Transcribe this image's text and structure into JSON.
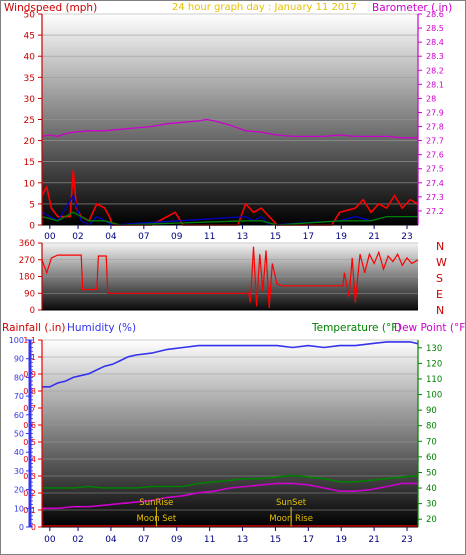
{
  "header": {
    "left_title": "Windspeed (mph)",
    "center_title": "24 hour graph day : January 11 2017",
    "right_title": "Barometer (.in)"
  },
  "middle": {
    "direction_labels": [
      "N",
      "W",
      "S",
      "E",
      "N"
    ]
  },
  "footer": {
    "rainfall_label": "Rainfall (.in)",
    "humidity_label": "Humidity (%)",
    "temperature_label": "Temperature (°F)",
    "dewpoint_label": "Dew Point (°F)"
  },
  "colors": {
    "wind": "#ff0000",
    "gust": "#0000cc",
    "wind_avg": "#008000",
    "barometer": "#cc00cc",
    "direction": "#ff0000",
    "humidity": "#3333ee",
    "temperature": "#008000",
    "dewpoint": "#cc00cc",
    "sun_moon": "#e6c000",
    "rain_axis": "#ee0000",
    "humidity_axis": "#3333ee",
    "temp_axis": "#008000"
  },
  "chart_data": [
    {
      "type": "line",
      "name": "wind-barometer",
      "x_ticks": [
        "00",
        "02",
        "04",
        "07",
        "09",
        "11",
        "13",
        "15",
        "17",
        "19",
        "21",
        "23"
      ],
      "y_left": {
        "label": "Windspeed (mph)",
        "range": [
          0,
          50
        ],
        "ticks": [
          0,
          5,
          10,
          15,
          20,
          25,
          30,
          35,
          40,
          45,
          50
        ]
      },
      "y_right": {
        "label": "Barometer (.in)",
        "range": [
          27.1,
          28.6
        ],
        "ticks": [
          "27.2",
          "27.3",
          "27.4",
          "27.5",
          "27.6",
          "27.7",
          "27.8",
          "27.9",
          "28",
          "28.1",
          "28.2",
          "28.3",
          "28.4",
          "28.5",
          "28.6"
        ]
      },
      "series": [
        {
          "key": "barometer",
          "points": [
            [
              0,
              27.73
            ],
            [
              0.5,
              27.74
            ],
            [
              1,
              27.73
            ],
            [
              1.5,
              27.75
            ],
            [
              2,
              27.76
            ],
            [
              3,
              27.77
            ],
            [
              4,
              27.77
            ],
            [
              5,
              27.78
            ],
            [
              6,
              27.79
            ],
            [
              7,
              27.8
            ],
            [
              8,
              27.82
            ],
            [
              9,
              27.83
            ],
            [
              10,
              27.84
            ],
            [
              10.5,
              27.85
            ],
            [
              11,
              27.84
            ],
            [
              12,
              27.81
            ],
            [
              13,
              27.77
            ],
            [
              14,
              27.76
            ],
            [
              15,
              27.74
            ],
            [
              16,
              27.73
            ],
            [
              17,
              27.73
            ],
            [
              18,
              27.73
            ],
            [
              19,
              27.74
            ],
            [
              20,
              27.73
            ],
            [
              21,
              27.73
            ],
            [
              22,
              27.73
            ],
            [
              23,
              27.72
            ],
            [
              24,
              27.72
            ]
          ]
        },
        {
          "key": "wind",
          "points": [
            [
              0,
              7
            ],
            [
              0.3,
              9
            ],
            [
              0.6,
              4
            ],
            [
              1,
              2
            ],
            [
              1.8,
              2
            ],
            [
              2,
              13
            ],
            [
              2.2,
              4
            ],
            [
              2.5,
              2
            ],
            [
              3,
              1
            ],
            [
              3.5,
              5
            ],
            [
              4,
              4
            ],
            [
              4.3,
              2
            ],
            [
              4.5,
              0
            ],
            [
              7,
              0
            ],
            [
              8.5,
              3
            ],
            [
              9,
              0
            ],
            [
              12.5,
              0
            ],
            [
              13,
              5
            ],
            [
              13.5,
              3
            ],
            [
              14,
              4
            ],
            [
              14.5,
              2
            ],
            [
              15,
              0
            ],
            [
              18.5,
              0
            ],
            [
              19,
              3
            ],
            [
              20,
              4
            ],
            [
              20.5,
              6
            ],
            [
              21,
              3
            ],
            [
              21.5,
              5
            ],
            [
              22,
              4
            ],
            [
              22.5,
              7
            ],
            [
              23,
              4
            ],
            [
              23.5,
              6
            ],
            [
              24,
              5
            ]
          ]
        },
        {
          "key": "gust",
          "points": [
            [
              0,
              3
            ],
            [
              0.5,
              2
            ],
            [
              1,
              1
            ],
            [
              2,
              7
            ],
            [
              2.5,
              1
            ],
            [
              3,
              0
            ],
            [
              3.5,
              2
            ],
            [
              4,
              1
            ],
            [
              4.5,
              0
            ],
            [
              13,
              2
            ],
            [
              13.5,
              1
            ],
            [
              14,
              2
            ],
            [
              14.5,
              0
            ],
            [
              19,
              1
            ],
            [
              20,
              2
            ],
            [
              21,
              1
            ],
            [
              22,
              2
            ],
            [
              23,
              2
            ],
            [
              24,
              2
            ]
          ]
        },
        {
          "key": "wind_avg",
          "points": [
            [
              0,
              2
            ],
            [
              1,
              1
            ],
            [
              2,
              3
            ],
            [
              3,
              1
            ],
            [
              4,
              1
            ],
            [
              5,
              0
            ],
            [
              13,
              1
            ],
            [
              14,
              1
            ],
            [
              15,
              0
            ],
            [
              19,
              1
            ],
            [
              20,
              1
            ],
            [
              21,
              1
            ],
            [
              22,
              2
            ],
            [
              23,
              2
            ],
            [
              24,
              2
            ]
          ]
        }
      ]
    },
    {
      "type": "line",
      "name": "wind-direction",
      "y_ticks": [
        0,
        90,
        180,
        270,
        360
      ],
      "y_range": [
        0,
        360
      ],
      "series": [
        {
          "key": "direction",
          "points": [
            [
              0,
              270
            ],
            [
              0.3,
              200
            ],
            [
              0.6,
              280
            ],
            [
              1,
              295
            ],
            [
              2.5,
              295
            ],
            [
              2.6,
              110
            ],
            [
              3.5,
              110
            ],
            [
              3.6,
              290
            ],
            [
              4.1,
              290
            ],
            [
              4.2,
              90
            ],
            [
              5,
              90
            ],
            [
              12,
              90
            ],
            [
              13.2,
              90
            ],
            [
              13.3,
              40
            ],
            [
              13.5,
              340
            ],
            [
              13.7,
              20
            ],
            [
              13.9,
              300
            ],
            [
              14.1,
              100
            ],
            [
              14.3,
              320
            ],
            [
              14.5,
              10
            ],
            [
              14.7,
              250
            ],
            [
              15,
              140
            ],
            [
              15.3,
              130
            ],
            [
              19.2,
              130
            ],
            [
              19.3,
              200
            ],
            [
              19.6,
              70
            ],
            [
              19.8,
              280
            ],
            [
              20,
              40
            ],
            [
              20.3,
              300
            ],
            [
              20.6,
              200
            ],
            [
              20.9,
              300
            ],
            [
              21.2,
              250
            ],
            [
              21.5,
              310
            ],
            [
              21.8,
              220
            ],
            [
              22.1,
              290
            ],
            [
              22.4,
              260
            ],
            [
              22.7,
              300
            ],
            [
              23,
              240
            ],
            [
              23.3,
              280
            ],
            [
              23.6,
              250
            ],
            [
              24,
              270
            ]
          ]
        }
      ]
    },
    {
      "type": "line",
      "name": "rain-humidity-temperature",
      "x_ticks": [
        "00",
        "02",
        "04",
        "07",
        "09",
        "11",
        "13",
        "15",
        "17",
        "19",
        "21",
        "23"
      ],
      "y_left": {
        "label": "Rainfall (.in)",
        "range": [
          0,
          1.1
        ],
        "ticks": [
          "0",
          "0.1",
          "0.2",
          "0.3",
          "0.4",
          "0.5",
          "0.6",
          "0.7",
          "0.8",
          "0.9",
          "1",
          "1.1"
        ]
      },
      "y_humidity": {
        "label": "Humidity (%)",
        "range": [
          0,
          100
        ],
        "ticks": [
          0,
          10,
          20,
          30,
          40,
          50,
          60,
          70,
          80,
          90,
          100
        ]
      },
      "y_right": {
        "label": "Temperature (°F)",
        "range": [
          15,
          135
        ],
        "ticks": [
          20,
          30,
          40,
          50,
          60,
          70,
          80,
          90,
          100,
          110,
          120,
          130
        ]
      },
      "annotations": [
        "SunRise",
        "SunSet",
        "Moon Set",
        "Moon Rise"
      ],
      "series": [
        {
          "key": "humidity",
          "points": [
            [
              0,
              75
            ],
            [
              0.5,
              75
            ],
            [
              1,
              77
            ],
            [
              1.5,
              78
            ],
            [
              2,
              80
            ],
            [
              3,
              82
            ],
            [
              3.5,
              84
            ],
            [
              4,
              86
            ],
            [
              4.5,
              87
            ],
            [
              5,
              89
            ],
            [
              5.5,
              91
            ],
            [
              6,
              92
            ],
            [
              7,
              93
            ],
            [
              8,
              95
            ],
            [
              9,
              96
            ],
            [
              10,
              97
            ],
            [
              11,
              97
            ],
            [
              12,
              97
            ],
            [
              13,
              97
            ],
            [
              14,
              97
            ],
            [
              15,
              97
            ],
            [
              16,
              96
            ],
            [
              17,
              97
            ],
            [
              18,
              96
            ],
            [
              19,
              97
            ],
            [
              20,
              97
            ],
            [
              21,
              98
            ],
            [
              22,
              99
            ],
            [
              23,
              99
            ],
            [
              23.5,
              99
            ],
            [
              24,
              98
            ]
          ]
        },
        {
          "key": "temperature",
          "points": [
            [
              0,
              40
            ],
            [
              1,
              40
            ],
            [
              2,
              40
            ],
            [
              3,
              41
            ],
            [
              4,
              40
            ],
            [
              5,
              40
            ],
            [
              6,
              40
            ],
            [
              7,
              41
            ],
            [
              8,
              41
            ],
            [
              9,
              41
            ],
            [
              10,
              43
            ],
            [
              11,
              44
            ],
            [
              12,
              45
            ],
            [
              13,
              46
            ],
            [
              14,
              46
            ],
            [
              15,
              47
            ],
            [
              16,
              48
            ],
            [
              17,
              47
            ],
            [
              18,
              46
            ],
            [
              19,
              44
            ],
            [
              20,
              44
            ],
            [
              21,
              45
            ],
            [
              22,
              46
            ],
            [
              23,
              47
            ],
            [
              24,
              48
            ]
          ]
        },
        {
          "key": "dewpoint",
          "points": [
            [
              0,
              27
            ],
            [
              1,
              27
            ],
            [
              2,
              28
            ],
            [
              3,
              28
            ],
            [
              4,
              29
            ],
            [
              5,
              30
            ],
            [
              6,
              31
            ],
            [
              7,
              32
            ],
            [
              8,
              34
            ],
            [
              9,
              35
            ],
            [
              10,
              37
            ],
            [
              11,
              38
            ],
            [
              12,
              40
            ],
            [
              13,
              41
            ],
            [
              14,
              42
            ],
            [
              15,
              43
            ],
            [
              16,
              43
            ],
            [
              17,
              42
            ],
            [
              18,
              40
            ],
            [
              19,
              38
            ],
            [
              20,
              38
            ],
            [
              21,
              39
            ],
            [
              22,
              41
            ],
            [
              23,
              43
            ],
            [
              24,
              43
            ]
          ]
        }
      ]
    }
  ]
}
